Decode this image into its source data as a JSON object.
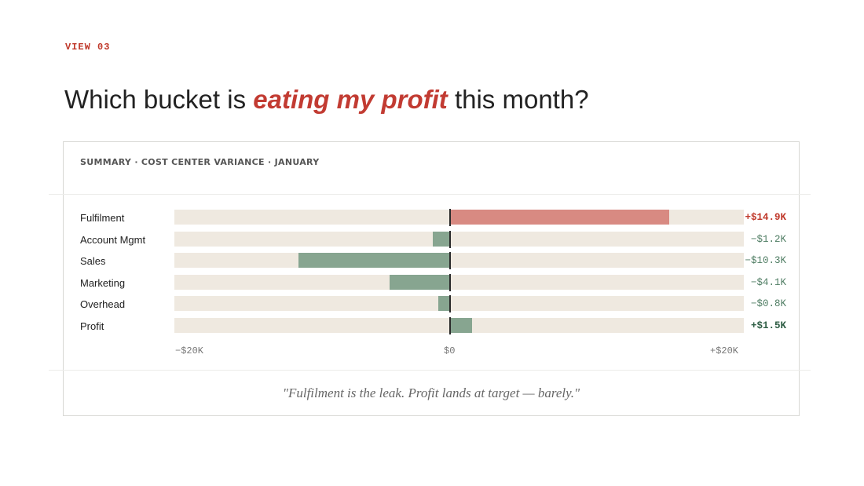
{
  "eyebrow": "VIEW 03",
  "headline": {
    "before": "Which bucket is ",
    "emphasis": "eating my profit",
    "after": " this month?"
  },
  "card_title": "SUMMARY · COST CENTER VARIANCE · JANUARY",
  "quote": "\"Fulfilment is the leak. Profit lands at target — barely.\"",
  "colors": {
    "accent": "#c23b32",
    "over_bar": "#d88a82",
    "under_bar": "#87a590",
    "track": "#efe9e0",
    "over_text": "#c0392b",
    "under_text": "#4f7d63",
    "profit_text": "#2f5e45"
  },
  "chart_data": {
    "type": "bar",
    "orientation": "horizontal",
    "xlim": [
      -20,
      20
    ],
    "unit": "$K",
    "categories": [
      "Fulfilment",
      "Account Mgmt",
      "Sales",
      "Marketing",
      "Overhead",
      "Profit"
    ],
    "values": [
      14.9,
      -1.2,
      -10.3,
      -4.1,
      -0.8,
      1.5
    ],
    "value_labels": [
      "+$14.9K",
      "−$1.2K",
      "−$10.3K",
      "−$4.1K",
      "−$0.8K",
      "+$1.5K"
    ],
    "ticks": [
      {
        "value": -20,
        "label": "−$20K"
      },
      {
        "value": 0,
        "label": "$0"
      },
      {
        "value": 20,
        "label": "+$20K"
      }
    ]
  }
}
